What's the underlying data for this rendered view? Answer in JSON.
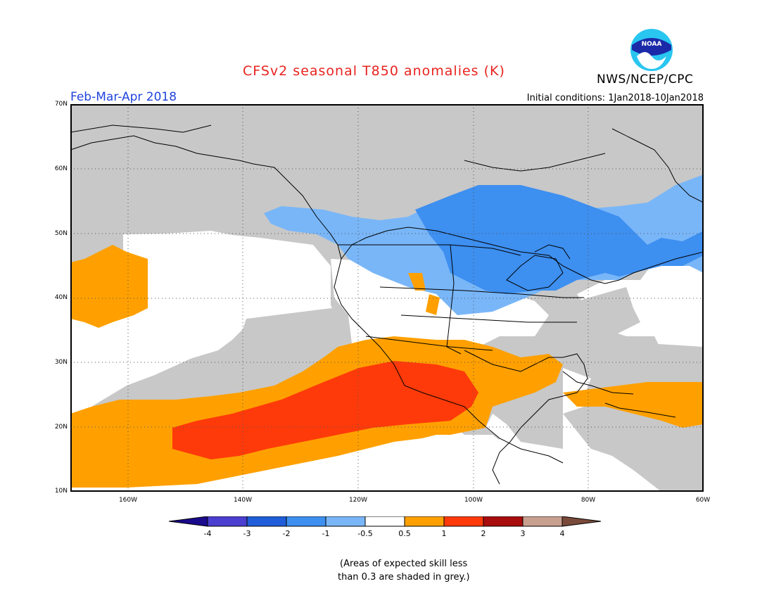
{
  "title": "CFSv2 seasonal T850 anomalies (K)",
  "period": "Feb-Mar-Apr 2018",
  "initial_conditions": "Initial conditions: 1Jan2018-10Jan2018",
  "organization": "NWS/NCEP/CPC",
  "logo_text": "NOAA",
  "map": {
    "lat_labels": [
      "70N",
      "60N",
      "50N",
      "40N",
      "30N",
      "20N",
      "10N"
    ],
    "lon_labels": [
      "160W",
      "140W",
      "120W",
      "100W",
      "80W",
      "60W"
    ],
    "lat_range": [
      10,
      70
    ],
    "lon_range": [
      -170,
      -60
    ],
    "grid": "dotted",
    "colors": {
      "land_outline": "#000000",
      "no_skill_grey": "#c8c8c8",
      "background": "#ffffff"
    }
  },
  "legend": {
    "labels": [
      "-4",
      "-3",
      "-2",
      "-1",
      "-0.5",
      "0.5",
      "1",
      "2",
      "3",
      "4"
    ],
    "colors": [
      "#1a0a8c",
      "#4a3fd0",
      "#1f5ed8",
      "#3d8ff0",
      "#79b6f8",
      "#ffffff",
      "#ffa000",
      "#ff3a0a",
      "#a80c0c",
      "#c8a090",
      "#7a4a3a"
    ]
  },
  "note_line1": "(Areas of expected skill less",
  "note_line2": "than 0.3 are shaded in grey.)",
  "chart_data": {
    "type": "heatmap",
    "title": "CFSv2 seasonal T850 anomalies (K)",
    "units": "K",
    "anomaly_regions": [
      {
        "region": "central Canada / upper Great Lakes",
        "category": "-2 to -1"
      },
      {
        "region": "western Canada / Pacific Northwest",
        "category": "-1 to -0.5"
      },
      {
        "region": "northern Mexico / Gulf of California / subtropical NE Pacific",
        "category": "1 to 2"
      },
      {
        "region": "southern US / Gulf of Mexico / Caribbean / Hawaii",
        "category": "0.5 to 1"
      },
      {
        "region": "eastern Pacific off California / central US",
        "category": "-0.5 to 0.5"
      },
      {
        "region": "Alaska / Arctic / Atlantic / east Pacific",
        "category": "low skill (grey)"
      }
    ]
  }
}
